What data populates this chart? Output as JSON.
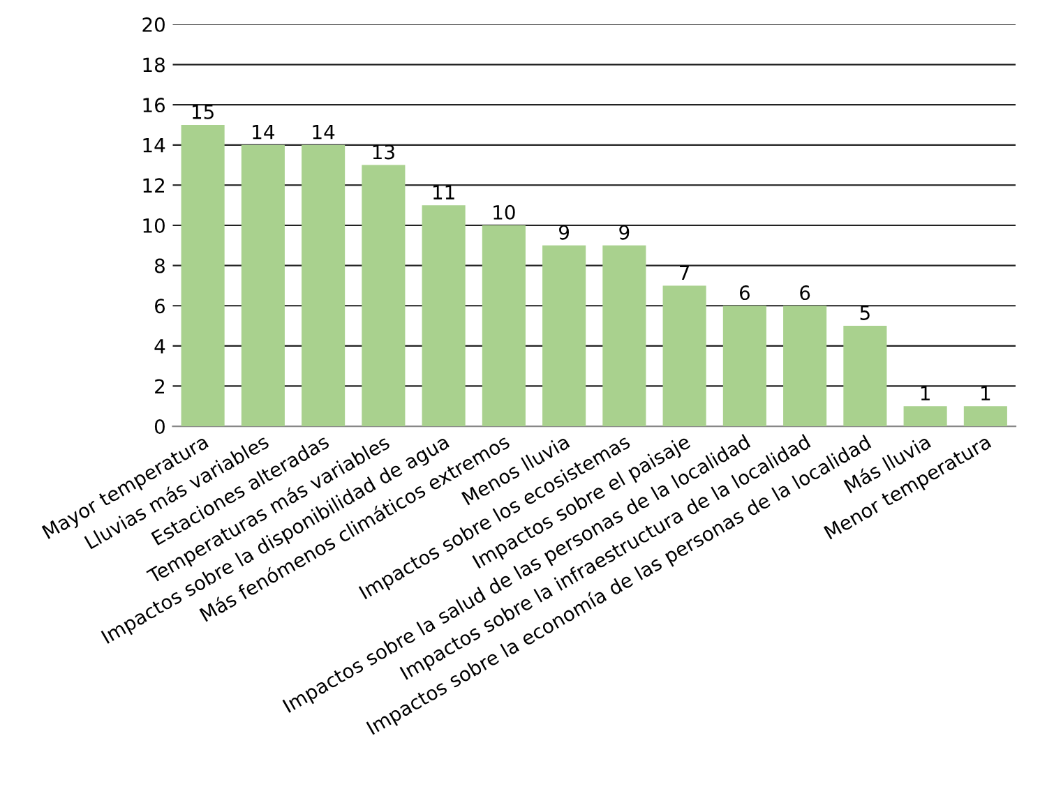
{
  "chart_data": {
    "type": "bar",
    "categories": [
      "Mayor temperatura",
      "Lluvias más variables",
      "Estaciones alteradas",
      "Temperaturas más variables",
      "Impactos sobre la disponibilidad de agua",
      "Más fenómenos climáticos extremos",
      "Menos lluvia",
      "Impactos sobre los ecosistemas",
      "Impactos sobre el paisaje",
      "Impactos sobre la salud de las personas de la localidad",
      "Impactos sobre la infraestructura de la localidad",
      "Impactos sobre la economía de las personas de la localidad",
      "Más lluvia",
      "Menor temperatura"
    ],
    "values": [
      15,
      14,
      14,
      13,
      11,
      10,
      9,
      9,
      7,
      6,
      6,
      5,
      1,
      1
    ],
    "color": "#a9d18e",
    "ylim": [
      0,
      20
    ],
    "yticks": [
      0,
      2,
      4,
      6,
      8,
      10,
      12,
      14,
      16,
      18,
      20
    ],
    "grid": "y",
    "data_labels": true
  }
}
